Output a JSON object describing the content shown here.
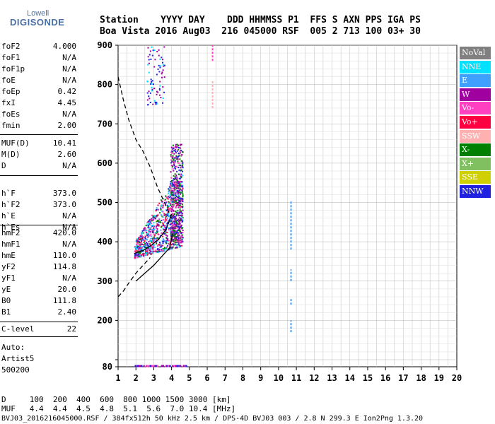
{
  "logo": {
    "line1": "Lowell",
    "line2": "DIGISONDE"
  },
  "header": {
    "line1": "Station    YYYY DAY    DDD HHMMSS P1  FFS S AXN PPS IGA PS",
    "line2": "Boa Vista 2016 Aug03  216 045000 RSF  005 2 713 100 03+ 30"
  },
  "params": {
    "group1": [
      {
        "k": "foF2",
        "v": "4.000"
      },
      {
        "k": "foF1",
        "v": "N/A"
      },
      {
        "k": "foF1p",
        "v": "N/A"
      },
      {
        "k": "foE",
        "v": "N/A"
      },
      {
        "k": "foEp",
        "v": "0.42"
      },
      {
        "k": "fxI",
        "v": "4.45"
      },
      {
        "k": "foEs",
        "v": "N/A"
      },
      {
        "k": "fmin",
        "v": "2.00"
      }
    ],
    "group2": [
      {
        "k": "MUF(D)",
        "v": "10.41"
      },
      {
        "k": "M(D)",
        "v": "2.60"
      },
      {
        "k": "D",
        "v": "N/A"
      }
    ],
    "group3": [
      {
        "k": "h`F",
        "v": "373.0"
      },
      {
        "k": "h`F2",
        "v": "373.0"
      },
      {
        "k": "h`E",
        "v": "N/A"
      },
      {
        "k": "h`Es",
        "v": "N/A"
      }
    ],
    "group4": [
      {
        "k": "hmF2",
        "v": "420.0"
      },
      {
        "k": "hmF1",
        "v": "N/A"
      },
      {
        "k": "hmE",
        "v": "110.0"
      },
      {
        "k": "yF2",
        "v": "114.8"
      },
      {
        "k": "yF1",
        "v": "N/A"
      },
      {
        "k": "yE",
        "v": "20.0"
      },
      {
        "k": "B0",
        "v": "111.8"
      },
      {
        "k": "B1",
        "v": "2.40"
      }
    ],
    "clevel": {
      "k": "C-level",
      "v": "22"
    },
    "auto": [
      "Auto:",
      "Artist5",
      "500200"
    ]
  },
  "legend": [
    {
      "label": "NoVal",
      "color": "#808080"
    },
    {
      "label": "NNE",
      "color": "#00e0ff"
    },
    {
      "label": "E",
      "color": "#3fa0ff"
    },
    {
      "label": "W",
      "color": "#a000a0"
    },
    {
      "label": "Vo-",
      "color": "#ff40c0"
    },
    {
      "label": "Vo+",
      "color": "#ff0040"
    },
    {
      "label": "SSW",
      "color": "#ffb0b0"
    },
    {
      "label": "X-",
      "color": "#008000"
    },
    {
      "label": "X+",
      "color": "#80c060"
    },
    {
      "label": "SSE",
      "color": "#d0d000"
    },
    {
      "label": "NNW",
      "color": "#2020e0"
    }
  ],
  "bottom": {
    "line1": "D     100  200  400  600  800 1000 1500 3000 [km]",
    "line2": "MUF   4.4  4.4  4.5  4.8  5.1  5.6  7.0 10.4 [MHz]",
    "line3": "BVJ03_2016216045000.RSF / 384fx512h 50 kHz 2.5 km / DPS-4D BVJ03 003 / 2.8 N 299.3 E Ion2Png 1.3.20"
  },
  "chart_data": {
    "type": "scatter",
    "xlim": [
      1,
      20
    ],
    "ylim": [
      80,
      900
    ],
    "x_ticks": [
      1,
      2,
      3,
      4,
      5,
      6,
      7,
      8,
      9,
      10,
      11,
      12,
      13,
      14,
      15,
      16,
      17,
      18,
      19,
      20
    ],
    "y_ticks": [
      80,
      100,
      200,
      300,
      400,
      500,
      600,
      700,
      800,
      900
    ],
    "y_tick_labels": [
      "80",
      "",
      "200",
      "300",
      "400",
      "500",
      "600",
      "700",
      "800",
      "900"
    ],
    "grid": true,
    "series": [
      {
        "kind": "dashed-curve",
        "x": [
          1.0,
          1.3,
          1.6,
          2.0,
          2.4,
          2.8,
          3.2,
          3.6,
          4.0
        ],
        "y": [
          820,
          760,
          710,
          660,
          630,
          590,
          540,
          500,
          460
        ]
      },
      {
        "kind": "dashed-curve",
        "x": [
          1.0,
          1.3,
          1.6,
          2.0,
          2.4,
          2.8
        ],
        "y": [
          260,
          275,
          295,
          320,
          340,
          360
        ]
      },
      {
        "kind": "solid-curve",
        "x": [
          2.0,
          2.5,
          3.0,
          3.3,
          3.6,
          3.9,
          4.05
        ],
        "y": [
          300,
          320,
          340,
          355,
          370,
          385,
          420
        ]
      },
      {
        "kind": "solid-curve",
        "x": [
          1.9,
          2.4,
          2.9,
          3.3,
          3.7,
          4.0
        ],
        "y": [
          370,
          378,
          392,
          408,
          432,
          470
        ]
      }
    ],
    "vertical_traces": [
      {
        "x": 10.7,
        "y_from": 380,
        "y_to": 505,
        "color": "#3fa0ff"
      },
      {
        "x": 10.7,
        "y_from": 300,
        "y_to": 330,
        "color": "#3fa0ff"
      },
      {
        "x": 10.7,
        "y_from": 170,
        "y_to": 200,
        "color": "#3fa0ff"
      },
      {
        "x": 10.7,
        "y_from": 240,
        "y_to": 255,
        "color": "#3fa0ff"
      },
      {
        "x": 6.3,
        "y_from": 740,
        "y_to": 810,
        "color": "#ffb0b0"
      },
      {
        "x": 6.3,
        "y_from": 860,
        "y_to": 900,
        "color": "#ff40c0"
      }
    ],
    "echo_clusters": [
      {
        "x": [
          1.9,
          4.6
        ],
        "y": [
          360,
          600
        ],
        "colors": [
          "#a000a0",
          "#ff40c0",
          "#ff0040",
          "#2020e0",
          "#008000",
          "#00e0ff",
          "#3fa0ff"
        ]
      },
      {
        "x": [
          3.9,
          4.6
        ],
        "y": [
          400,
          650
        ],
        "colors": [
          "#a000a0",
          "#ff40c0",
          "#2020e0",
          "#008000"
        ]
      },
      {
        "x": [
          2.6,
          3.6
        ],
        "y": [
          750,
          900
        ],
        "colors": [
          "#a000a0",
          "#2020e0",
          "#00e0ff"
        ]
      }
    ]
  }
}
